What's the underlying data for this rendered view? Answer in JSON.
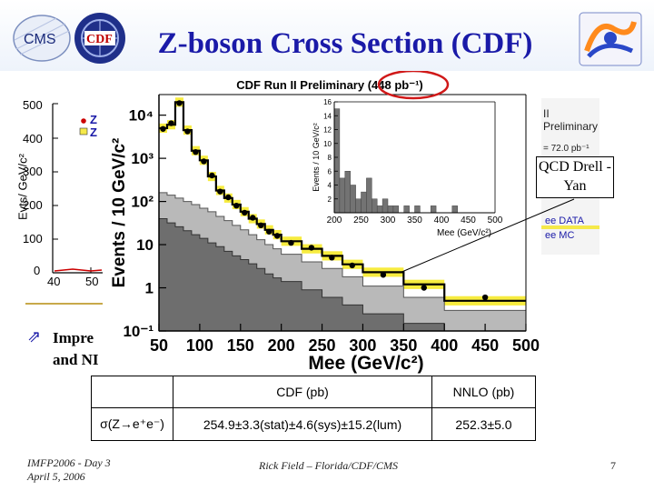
{
  "slide": {
    "title": "Z-boson Cross Section (CDF)",
    "callout_text": "QCD Drell -Yan",
    "bullet_text_line1": "Impre",
    "bullet_text_line2": "and NI",
    "footer_left_line1": "IMFP2006 - Day 3",
    "footer_left_line2": "April 5, 2006",
    "footer_center": "Rick Field – Florida/CDF/CMS",
    "page_number": "7"
  },
  "background_plot": {
    "ylabel": "Evts/ GeV/c²",
    "yticks": [
      "500",
      "400",
      "300",
      "200",
      "100",
      "0"
    ],
    "xticks": [
      "40",
      "50"
    ],
    "legend_fragments": [
      "Z",
      "Z"
    ],
    "right_fragments": {
      "preliminary": "II Preliminary",
      "lumi": "= 72.0 pb⁻¹",
      "data": "ee DATA",
      "mc": "ee MC"
    },
    "colors": {
      "data_marker": "#cc0000",
      "mc_fill": "#f5e94a"
    }
  },
  "results_table": {
    "headers": [
      "",
      "CDF (pb)",
      "NNLO (pb)"
    ],
    "rows": [
      {
        "process": "σ(Z→e⁺e⁻)",
        "cdf": "254.9±3.3(stat)±4.6(sys)±15.2(lum)",
        "nnlo": "252.3±5.0"
      }
    ]
  },
  "chart_data": [
    {
      "type": "bar",
      "title": "CDF Run II Preliminary (448 pb⁻¹)",
      "xlabel": "Mee (GeV/c²)",
      "ylabel": "Events / 10 GeV/c²",
      "yscale": "log",
      "xlim": [
        50,
        500
      ],
      "ylim": [
        0.1,
        30000
      ],
      "xticks": [
        "50",
        "100",
        "150",
        "200",
        "250",
        "300",
        "350",
        "400",
        "450",
        "500"
      ],
      "yticks": [
        "10⁻¹",
        "1",
        "10",
        "10²",
        "10³",
        "10⁴"
      ],
      "bin_edges": [
        50,
        60,
        70,
        80,
        90,
        100,
        110,
        120,
        130,
        140,
        150,
        160,
        170,
        180,
        190,
        200,
        225,
        250,
        275,
        300,
        350,
        400,
        500
      ],
      "series": [
        {
          "name": "",
          "kind": "total-mc-line",
          "values": [
            5000,
            6000,
            20000,
            4500,
            1500,
            900,
            380,
            180,
            120,
            85,
            58,
            40,
            30,
            22,
            17,
            12,
            8,
            5.5,
            3.5,
            2.3,
            1.2,
            0.5
          ]
        },
        {
          "name": "",
          "kind": "qcd-fill",
          "values": [
            160,
            140,
            120,
            100,
            85,
            70,
            58,
            45,
            36,
            28,
            22,
            17,
            13,
            10,
            8,
            6,
            4,
            2.8,
            1.8,
            1.1,
            0.6,
            0.3
          ]
        },
        {
          "name": "",
          "kind": "dy-fill",
          "values": [
            40,
            32,
            26,
            21,
            17,
            14,
            11,
            9,
            7,
            5.5,
            4.5,
            3.6,
            2.8,
            2.1,
            1.7,
            1.4,
            0.9,
            0.6,
            0.4,
            0.25,
            0.15,
            0.1
          ]
        },
        {
          "name": "",
          "kind": "data",
          "x": [
            55,
            65,
            75,
            85,
            95,
            105,
            115,
            125,
            135,
            145,
            155,
            165,
            175,
            185,
            195,
            212,
            237,
            262,
            287,
            325,
            375,
            450
          ],
          "values": [
            4800,
            6500,
            19000,
            4200,
            1400,
            850,
            400,
            170,
            125,
            80,
            55,
            42,
            28,
            20,
            16,
            11,
            8.5,
            5,
            3.3,
            2.0,
            1.0,
            0.6
          ]
        }
      ]
    },
    {
      "type": "bar",
      "title": "",
      "xlabel": "Mee (GeV/c²)",
      "ylabel": "Events / 10 GeV/c²",
      "xlim": [
        200,
        500
      ],
      "ylim": [
        0,
        16
      ],
      "xticks": [
        "200",
        "250",
        "300",
        "350",
        "400",
        "450",
        "500"
      ],
      "yticks": [
        "0",
        "2",
        "4",
        "6",
        "8",
        "10",
        "12",
        "14",
        "16"
      ],
      "bin_edges": [
        200,
        210,
        220,
        230,
        240,
        250,
        260,
        270,
        280,
        290,
        300,
        310,
        320,
        330,
        340,
        350,
        360,
        370,
        380,
        390,
        400,
        410,
        420,
        430,
        440,
        450,
        460,
        470,
        480,
        490,
        500
      ],
      "series": [
        {
          "name": "",
          "kind": "data-hist",
          "values": [
            15,
            5,
            6,
            4,
            2,
            3,
            5,
            2,
            1,
            2,
            1,
            1,
            0,
            1,
            0,
            1,
            0,
            0,
            1,
            0,
            0,
            0,
            1,
            0,
            0,
            0,
            0,
            0,
            0,
            0
          ]
        }
      ]
    }
  ]
}
